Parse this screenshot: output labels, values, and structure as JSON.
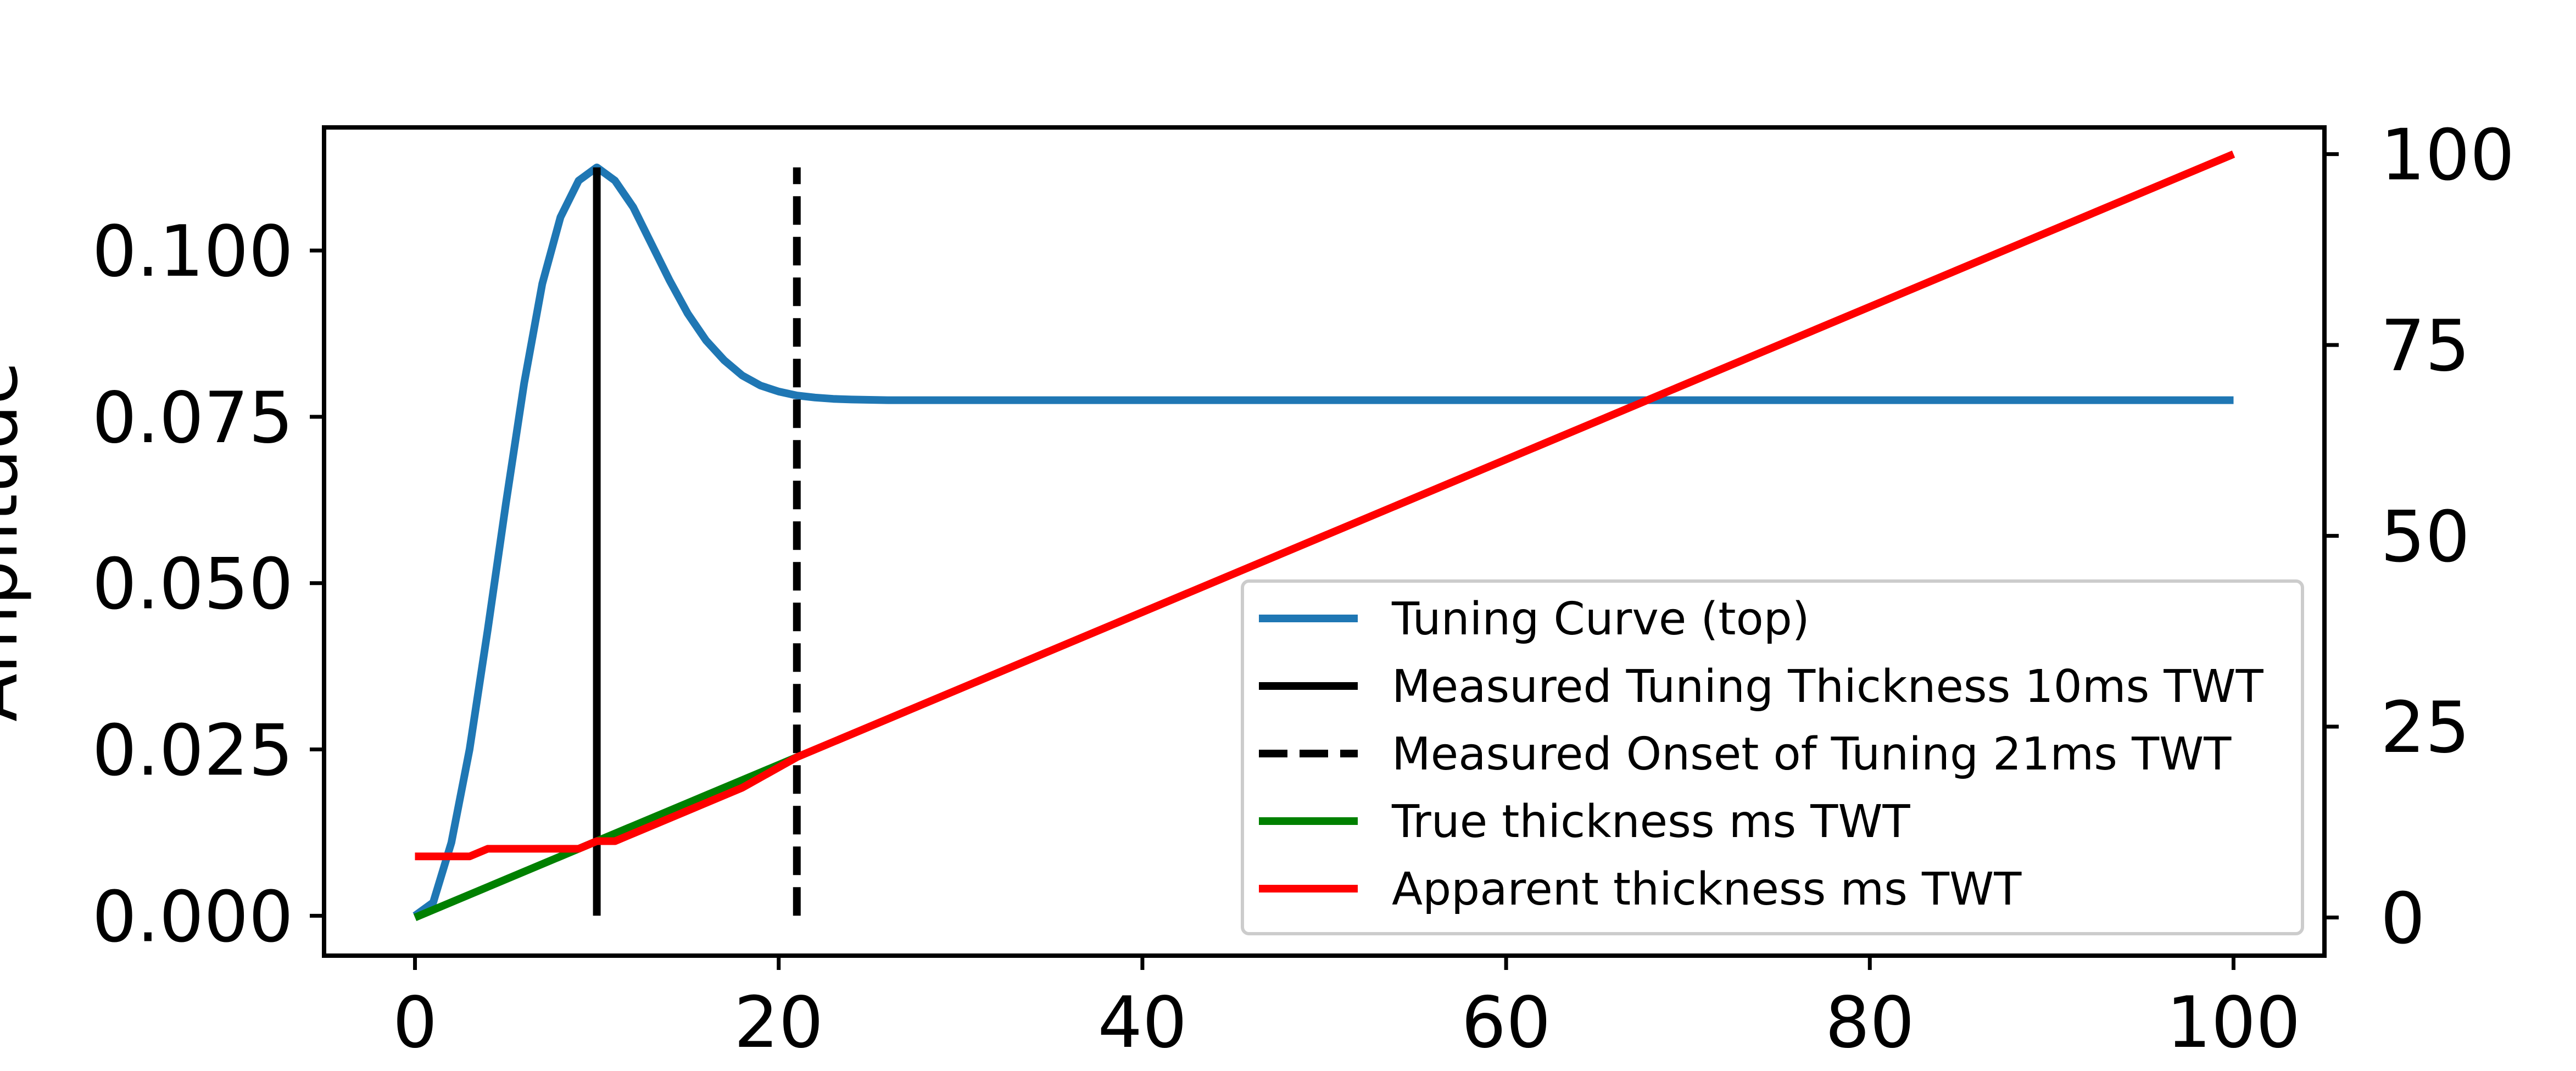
{
  "chart_data": {
    "type": "line",
    "title": "",
    "xlabel": "",
    "ylabel": "Amplitude",
    "y2label": "",
    "xlim": [
      -5,
      105
    ],
    "ylim": [
      -0.006,
      0.1185
    ],
    "y2lim": [
      -5,
      103.5
    ],
    "x_ticks": [
      0,
      20,
      40,
      60,
      80,
      100
    ],
    "y_ticks": [
      0.0,
      0.025,
      0.05,
      0.075,
      0.1
    ],
    "y_tick_labels": [
      "0.000",
      "0.025",
      "0.050",
      "0.075",
      "0.100"
    ],
    "y2_ticks": [
      0,
      25,
      50,
      75,
      100
    ],
    "grid": false,
    "legend_position": "lower-right",
    "series": [
      {
        "name": "Tuning Curve (top)",
        "axis": "left",
        "color": "#1f77b4",
        "style": "solid",
        "x": [
          0,
          1,
          2,
          3,
          4,
          5,
          6,
          7,
          8,
          9,
          10,
          11,
          12,
          13,
          14,
          15,
          16,
          17,
          18,
          19,
          20,
          21,
          22,
          23,
          24,
          26,
          30,
          40,
          60,
          80,
          100
        ],
        "y": [
          0.0,
          0.002,
          0.011,
          0.025,
          0.043,
          0.062,
          0.08,
          0.095,
          0.105,
          0.1105,
          0.1125,
          0.1105,
          0.1065,
          0.101,
          0.0955,
          0.0905,
          0.0865,
          0.0835,
          0.0812,
          0.0797,
          0.0788,
          0.0782,
          0.0779,
          0.0777,
          0.0776,
          0.0775,
          0.0775,
          0.0775,
          0.0775,
          0.0775,
          0.0775
        ]
      },
      {
        "name": "Measured Tuning Thickness 10ms TWT",
        "axis": "left",
        "color": "#000000",
        "style": "solid",
        "x": [
          10,
          10
        ],
        "y": [
          0.0,
          0.1125
        ]
      },
      {
        "name": "Measured Onset of Tuning 21ms TWT",
        "axis": "left",
        "color": "#000000",
        "style": "dashed",
        "x": [
          21,
          21
        ],
        "y": [
          0.0,
          0.1125
        ]
      },
      {
        "name": "True thickness ms TWT",
        "axis": "right",
        "color": "#008000",
        "style": "solid",
        "x": [
          0,
          21
        ],
        "y": [
          0,
          21
        ]
      },
      {
        "name": "Apparent thickness ms TWT",
        "axis": "right",
        "color": "#ff0000",
        "style": "solid",
        "x": [
          0,
          3,
          4,
          9,
          10,
          11,
          18,
          21,
          100
        ],
        "y": [
          8,
          8,
          9,
          9,
          10,
          10,
          17,
          21,
          100
        ]
      }
    ]
  }
}
